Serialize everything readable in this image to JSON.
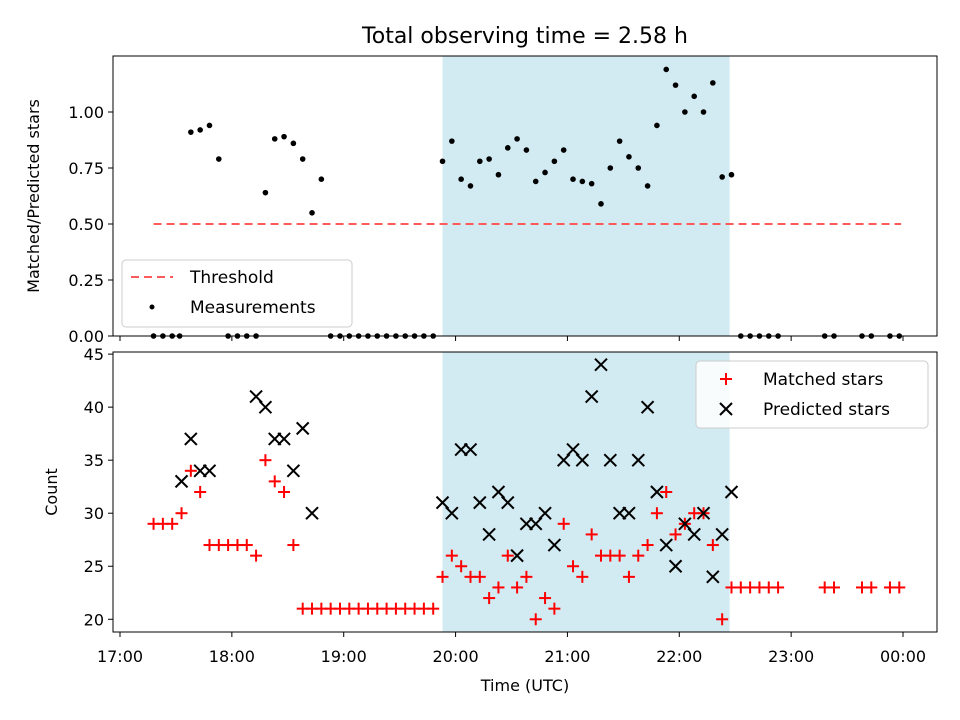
{
  "title": "Total observing time = 2.58 h",
  "colors": {
    "shade": "#add8e6",
    "threshold": "#ff5a5a",
    "matched": "#ff0000",
    "predicted": "#000000",
    "measurement": "#000000"
  },
  "chart_data": [
    {
      "type": "scatter",
      "panel": "top",
      "ylabel": "Matched/Predicted stars",
      "ylim": [
        0,
        1.25
      ],
      "yticks": [
        "0.00",
        "0.25",
        "0.50",
        "0.75",
        "1.00"
      ],
      "shaded_interval": [
        "19:53",
        "22:27"
      ],
      "legend": {
        "position": "lower-left",
        "entries": [
          "Threshold",
          "Measurements"
        ]
      },
      "series": [
        {
          "name": "Threshold",
          "style": "dashed-line",
          "x": [
            "17:18",
            "23:59"
          ],
          "y": [
            0.5,
            0.5
          ]
        },
        {
          "name": "Measurements",
          "style": "dot",
          "x": [
            "17:18",
            "17:23",
            "17:28",
            "17:32",
            "17:38",
            "17:43",
            "17:48",
            "17:53",
            "17:58",
            "18:03",
            "18:08",
            "18:13",
            "18:18",
            "18:23",
            "18:28",
            "18:33",
            "18:38",
            "18:43",
            "18:48",
            "18:53",
            "18:58",
            "19:03",
            "19:08",
            "19:13",
            "19:18",
            "19:23",
            "19:28",
            "19:33",
            "19:38",
            "19:43",
            "19:48",
            "19:53",
            "19:58",
            "20:03",
            "20:08",
            "20:13",
            "20:18",
            "20:23",
            "20:28",
            "20:33",
            "20:38",
            "20:43",
            "20:48",
            "20:53",
            "20:58",
            "21:03",
            "21:08",
            "21:13",
            "21:18",
            "21:23",
            "21:28",
            "21:33",
            "21:38",
            "21:43",
            "21:48",
            "21:53",
            "21:58",
            "22:03",
            "22:08",
            "22:13",
            "22:18",
            "22:23",
            "22:28",
            "22:33",
            "22:38",
            "22:43",
            "22:48",
            "22:53",
            "23:18",
            "23:23",
            "23:38",
            "23:43",
            "23:53",
            "23:58"
          ],
          "y": [
            0,
            0,
            0,
            0,
            0.91,
            0.92,
            0.94,
            0.79,
            0,
            0,
            0,
            0,
            0.64,
            0.88,
            0.89,
            0.86,
            0.79,
            0.55,
            0.7,
            0,
            0,
            0,
            0,
            0,
            0,
            0,
            0,
            0,
            0,
            0,
            0,
            0.78,
            0.87,
            0.7,
            0.67,
            0.78,
            0.79,
            0.72,
            0.84,
            0.88,
            0.83,
            0.69,
            0.73,
            0.78,
            0.83,
            0.7,
            0.69,
            0.68,
            0.59,
            0.75,
            0.87,
            0.8,
            0.75,
            0.67,
            0.94,
            1.19,
            1.12,
            1.0,
            1.07,
            1.0,
            1.13,
            0.71,
            0.72,
            0,
            0,
            0,
            0,
            0,
            0,
            0,
            0,
            0,
            0,
            0
          ]
        }
      ]
    },
    {
      "type": "scatter",
      "panel": "bottom",
      "xlabel": "Time (UTC)",
      "ylabel": "Count",
      "ylim": [
        18.8,
        45.2
      ],
      "yticks": [
        "20",
        "25",
        "30",
        "35",
        "40",
        "45"
      ],
      "xticks": [
        "17:00",
        "18:00",
        "19:00",
        "20:00",
        "21:00",
        "22:00",
        "23:00",
        "00:00"
      ],
      "shaded_interval": [
        "19:53",
        "22:27"
      ],
      "legend": {
        "position": "top-right",
        "entries": [
          "Matched stars",
          "Predicted stars"
        ]
      },
      "series": [
        {
          "name": "Matched stars",
          "marker": "+",
          "x": [
            "17:18",
            "17:23",
            "17:28",
            "17:33",
            "17:38",
            "17:43",
            "17:48",
            "17:53",
            "17:58",
            "18:03",
            "18:08",
            "18:13",
            "18:18",
            "18:23",
            "18:28",
            "18:33",
            "18:38",
            "18:43",
            "18:48",
            "18:53",
            "18:58",
            "19:03",
            "19:08",
            "19:13",
            "19:18",
            "19:23",
            "19:28",
            "19:33",
            "19:38",
            "19:43",
            "19:48",
            "19:53",
            "19:58",
            "20:03",
            "20:08",
            "20:13",
            "20:18",
            "20:23",
            "20:28",
            "20:33",
            "20:38",
            "20:43",
            "20:48",
            "20:53",
            "20:58",
            "21:03",
            "21:08",
            "21:13",
            "21:18",
            "21:23",
            "21:28",
            "21:33",
            "21:38",
            "21:43",
            "21:48",
            "21:53",
            "21:58",
            "22:03",
            "22:08",
            "22:13",
            "22:18",
            "22:23",
            "22:28",
            "22:33",
            "22:38",
            "22:43",
            "22:48",
            "22:53",
            "23:18",
            "23:23",
            "23:38",
            "23:43",
            "23:53",
            "23:58"
          ],
          "y": [
            29,
            29,
            29,
            30,
            34,
            32,
            27,
            27,
            27,
            27,
            27,
            26,
            35,
            33,
            32,
            27,
            21,
            21,
            21,
            21,
            21,
            21,
            21,
            21,
            21,
            21,
            21,
            21,
            21,
            21,
            21,
            24,
            26,
            25,
            24,
            24,
            22,
            23,
            26,
            23,
            24,
            20,
            22,
            21,
            29,
            25,
            24,
            28,
            26,
            26,
            26,
            24,
            26,
            27,
            30,
            32,
            28,
            29,
            30,
            30,
            27,
            20,
            23,
            23,
            23,
            23,
            23,
            23,
            23,
            23,
            23,
            23,
            23,
            23
          ]
        },
        {
          "name": "Predicted stars",
          "marker": "x",
          "x": [
            "17:33",
            "17:38",
            "17:43",
            "17:48",
            "18:13",
            "18:18",
            "18:23",
            "18:28",
            "18:33",
            "18:38",
            "18:43",
            "19:53",
            "19:58",
            "20:03",
            "20:08",
            "20:13",
            "20:18",
            "20:23",
            "20:28",
            "20:33",
            "20:38",
            "20:43",
            "20:48",
            "20:53",
            "20:58",
            "21:03",
            "21:08",
            "21:13",
            "21:18",
            "21:23",
            "21:28",
            "21:33",
            "21:38",
            "21:43",
            "21:48",
            "21:53",
            "21:58",
            "22:03",
            "22:08",
            "22:13",
            "22:18",
            "22:23",
            "22:28"
          ],
          "y": [
            33,
            37,
            34,
            34,
            41,
            40,
            37,
            37,
            34,
            38,
            30,
            31,
            30,
            36,
            36,
            31,
            28,
            32,
            31,
            26,
            29,
            29,
            30,
            27,
            35,
            36,
            35,
            41,
            44,
            35,
            30,
            30,
            35,
            40,
            32,
            27,
            25,
            29,
            28,
            30,
            24,
            28,
            32
          ]
        }
      ]
    }
  ]
}
